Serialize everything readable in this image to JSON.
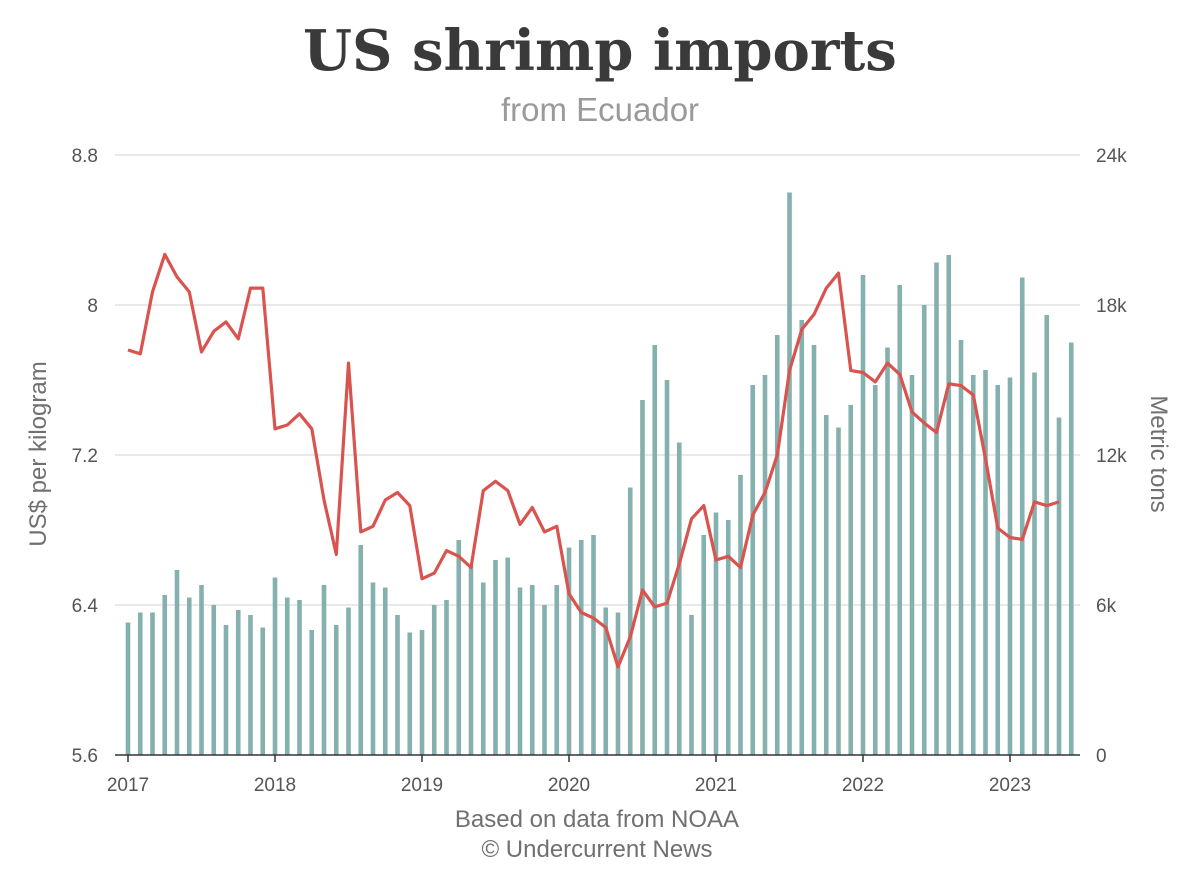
{
  "chart_data": {
    "type": "bar+line",
    "title": "US shrimp imports",
    "subtitle": "from Ecuador",
    "y_left_label": "US$ per kilogram",
    "y_right_label": "Metric tons",
    "source_line1": "Based on data from NOAA",
    "source_line2": "© Undercurrent News",
    "y_left_ticks": [
      "5.6",
      "6.4",
      "7.2",
      "8",
      "8.8"
    ],
    "y_left_range": [
      5.6,
      8.8
    ],
    "y_right_ticks": [
      "0",
      "6k",
      "12k",
      "18k",
      "24k"
    ],
    "y_right_range": [
      0,
      24000
    ],
    "x_ticks": [
      "2017",
      "2018",
      "2019",
      "2020",
      "2021",
      "2022",
      "2023"
    ],
    "x_start": "2017-01",
    "grid": true,
    "colors": {
      "bars": "#84b0ae",
      "line": "#d9534f",
      "grid": "#e2e2e2",
      "axis": "#333333"
    },
    "series": [
      {
        "name": "Metric tons",
        "type": "bar",
        "axis": "right",
        "values": [
          5300,
          5700,
          5700,
          6400,
          7400,
          6300,
          6800,
          6000,
          5200,
          5800,
          5600,
          5100,
          7100,
          6300,
          6200,
          5000,
          6800,
          5200,
          5900,
          8400,
          6900,
          6700,
          5600,
          4900,
          5000,
          6000,
          6200,
          8600,
          7600,
          6900,
          7800,
          7900,
          6700,
          6800,
          6000,
          6800,
          8300,
          8600,
          8800,
          5900,
          5700,
          10700,
          14200,
          16400,
          15000,
          12500,
          5600,
          8800,
          9700,
          9400,
          11200,
          14800,
          15200,
          16800,
          22500,
          17400,
          16400,
          13600,
          13100,
          14000,
          19200,
          14800,
          16300,
          18800,
          15200,
          18000,
          19700,
          20000,
          16600,
          15200,
          15400,
          14800,
          15100,
          19100,
          15300,
          17600,
          13500,
          16500
        ]
      },
      {
        "name": "US$ per kilogram",
        "type": "line",
        "axis": "left",
        "values": [
          7.76,
          7.74,
          8.07,
          8.27,
          8.15,
          8.07,
          7.75,
          7.86,
          7.91,
          7.82,
          8.09,
          8.09,
          7.34,
          7.36,
          7.42,
          7.34,
          6.96,
          6.67,
          7.69,
          6.79,
          6.82,
          6.96,
          7.0,
          6.93,
          6.54,
          6.57,
          6.69,
          6.66,
          6.6,
          7.01,
          7.06,
          7.01,
          6.83,
          6.92,
          6.79,
          6.82,
          6.46,
          6.36,
          6.33,
          6.28,
          6.07,
          6.23,
          6.48,
          6.39,
          6.41,
          6.62,
          6.86,
          6.93,
          6.64,
          6.66,
          6.6,
          6.88,
          7.0,
          7.2,
          7.65,
          7.87,
          7.95,
          8.09,
          8.17,
          7.65,
          7.64,
          7.59,
          7.69,
          7.63,
          7.43,
          7.37,
          7.32,
          7.58,
          7.57,
          7.52,
          7.18,
          6.81,
          6.76,
          6.75,
          6.95,
          6.93,
          6.95
        ]
      }
    ]
  }
}
